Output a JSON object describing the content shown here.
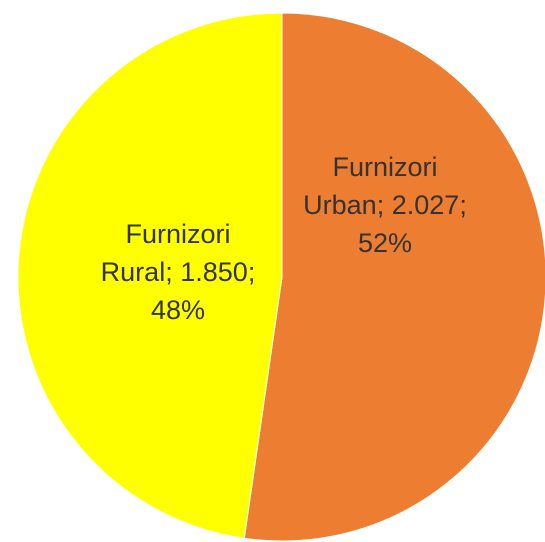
{
  "chart_data": {
    "type": "pie",
    "categories": [
      "Furnizori Urban",
      "Furnizori Rural"
    ],
    "values": [
      2027,
      1850
    ],
    "value_labels": [
      "2.027",
      "1.850"
    ],
    "percents": [
      52,
      48
    ],
    "percent_labels": [
      "52%",
      "48%"
    ],
    "separator": ";",
    "colors": [
      "#ed7d31",
      "#ffff00"
    ]
  }
}
